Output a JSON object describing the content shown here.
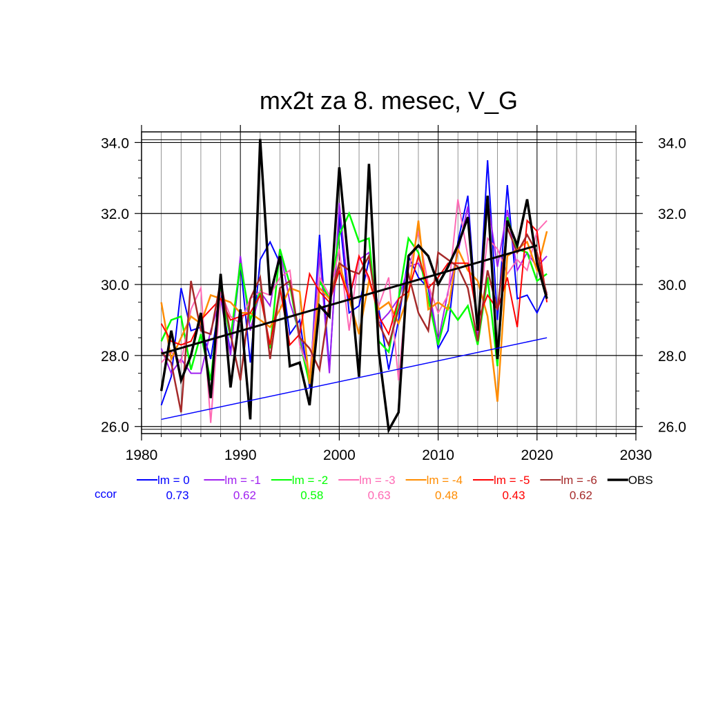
{
  "chart_data": {
    "type": "line",
    "title": "mx2t za 8. mesec, V_G",
    "xlabel": "",
    "ylabel": "",
    "xlim": [
      1980,
      2030
    ],
    "ylim": [
      25.8,
      34.3
    ],
    "x_ticks": [
      1980,
      1990,
      2000,
      2010,
      2020,
      2030
    ],
    "x_tick_labels": [
      "1980",
      "1990",
      "2000",
      "2010",
      "2020",
      "2030"
    ],
    "y_ticks": [
      26,
      28,
      30,
      32,
      34
    ],
    "y_tick_labels": [
      "26.0",
      "28.0",
      "30.0",
      "32.0",
      "34.0"
    ],
    "grid": true,
    "x": [
      1982,
      1983,
      1984,
      1985,
      1986,
      1987,
      1988,
      1989,
      1990,
      1991,
      1992,
      1993,
      1994,
      1995,
      1996,
      1997,
      1998,
      1999,
      2000,
      2001,
      2002,
      2003,
      2004,
      2005,
      2006,
      2007,
      2008,
      2009,
      2010,
      2011,
      2012,
      2013,
      2014,
      2015,
      2016,
      2017,
      2018,
      2019,
      2020,
      2021
    ],
    "series": [
      {
        "name": "lm = 0",
        "color": "#0000ff",
        "width": 2,
        "values": [
          26.6,
          27.4,
          29.9,
          28.7,
          28.8,
          27.9,
          29.7,
          28.1,
          30.6,
          27.8,
          30.7,
          31.2,
          30.6,
          28.6,
          29.0,
          27.1,
          31.4,
          27.6,
          32.0,
          29.2,
          29.4,
          30.7,
          29.3,
          27.6,
          29.0,
          30.8,
          30.2,
          29.9,
          28.2,
          28.7,
          31.2,
          32.5,
          28.6,
          33.5,
          29.0,
          32.8,
          29.6,
          29.7,
          29.2,
          29.8
        ]
      },
      {
        "name": "lm = -1",
        "color": "#a020f0",
        "width": 2,
        "values": [
          28.2,
          27.5,
          27.9,
          27.5,
          27.5,
          28.7,
          29.6,
          28.0,
          30.8,
          28.7,
          29.8,
          29.4,
          31.0,
          29.5,
          28.6,
          27.2,
          30.9,
          27.5,
          32.3,
          29.6,
          30.7,
          30.9,
          28.9,
          29.2,
          29.6,
          30.5,
          30.6,
          30.0,
          28.4,
          29.8,
          30.9,
          32.2,
          28.5,
          32.4,
          30.5,
          32.1,
          30.4,
          30.9,
          30.5,
          30.8
        ]
      },
      {
        "name": "lm = -2",
        "color": "#00ff00",
        "width": 2.5,
        "values": [
          28.4,
          29.0,
          29.1,
          27.6,
          28.6,
          27.3,
          29.9,
          28.5,
          30.6,
          29.0,
          29.8,
          28.2,
          31.0,
          30.0,
          28.4,
          27.2,
          30.1,
          29.6,
          31.4,
          32.0,
          31.2,
          31.3,
          28.4,
          28.1,
          29.6,
          31.3,
          30.9,
          29.6,
          28.3,
          29.4,
          29.0,
          29.4,
          28.3,
          30.2,
          27.7,
          31.9,
          31.0,
          30.9,
          30.1,
          30.3
        ]
      },
      {
        "name": "lm = -3",
        "color": "#ff69b4",
        "width": 2,
        "values": [
          27.8,
          28.1,
          27.8,
          29.3,
          29.9,
          26.1,
          29.8,
          29.1,
          28.9,
          29.6,
          29.8,
          29.7,
          30.2,
          30.4,
          28.3,
          27.5,
          30.2,
          29.7,
          31.0,
          28.7,
          30.8,
          30.1,
          29.4,
          30.2,
          27.3,
          30.4,
          31.5,
          30.0,
          29.2,
          29.7,
          32.4,
          30.8,
          28.9,
          31.3,
          31.0,
          30.3,
          30.7,
          30.4,
          31.5,
          31.8
        ]
      },
      {
        "name": "lm = -4",
        "color": "#ff8c00",
        "width": 2.5,
        "values": [
          29.5,
          27.9,
          28.5,
          29.1,
          28.9,
          29.7,
          29.6,
          29.5,
          29.2,
          29.2,
          29.0,
          28.8,
          29.3,
          29.9,
          29.8,
          27.2,
          29.9,
          29.6,
          30.6,
          29.6,
          28.6,
          30.1,
          29.3,
          29.5,
          28.9,
          29.7,
          31.8,
          29.3,
          29.5,
          29.3,
          31.0,
          30.4,
          30.1,
          29.1,
          26.7,
          30.8,
          31.0,
          31.2,
          30.4,
          31.5
        ]
      },
      {
        "name": "lm = -5",
        "color": "#ff0000",
        "width": 2,
        "values": [
          28.9,
          28.4,
          28.3,
          28.4,
          29.0,
          29.3,
          29.6,
          29.0,
          29.1,
          29.2,
          29.7,
          28.3,
          29.9,
          28.3,
          28.6,
          30.3,
          29.8,
          29.5,
          30.4,
          29.6,
          30.8,
          30.2,
          29.1,
          28.6,
          29.6,
          29.8,
          30.8,
          29.9,
          30.2,
          30.6,
          30.6,
          30.6,
          29.0,
          29.7,
          29.3,
          30.2,
          28.8,
          31.8,
          31.5,
          29.5
        ]
      },
      {
        "name": "lm = -6",
        "color": "#a52a2a",
        "width": 2.5,
        "values": [
          28.1,
          27.8,
          26.4,
          30.1,
          28.7,
          28.6,
          30.1,
          28.6,
          27.3,
          29.6,
          30.2,
          27.9,
          29.9,
          30.1,
          28.5,
          28.2,
          27.6,
          29.5,
          30.6,
          30.4,
          30.3,
          30.8,
          28.9,
          28.3,
          29.3,
          30.3,
          29.2,
          28.7,
          30.9,
          30.7,
          30.5,
          29.9,
          28.4,
          30.4,
          29.3,
          31.6,
          30.9,
          31.4,
          30.9,
          29.7
        ]
      },
      {
        "name": "OBS",
        "color": "#000000",
        "width": 3.5,
        "values": [
          27.0,
          28.7,
          27.3,
          28.0,
          29.2,
          26.8,
          30.3,
          27.1,
          29.3,
          26.2,
          34.1,
          29.7,
          30.8,
          27.7,
          27.8,
          26.6,
          29.4,
          29.1,
          33.3,
          30.4,
          27.4,
          33.4,
          28.1,
          25.9,
          26.4,
          30.8,
          31.1,
          30.8,
          30.0,
          30.5,
          31.1,
          31.9,
          28.7,
          32.5,
          27.9,
          31.8,
          31.1,
          32.4,
          30.6,
          29.6
        ]
      }
    ],
    "trend_lines": [
      {
        "color": "#000000",
        "width": 3,
        "x": [
          1982,
          2020
        ],
        "y": [
          28.05,
          31.1
        ]
      },
      {
        "color": "#0000ff",
        "width": 1.5,
        "x": [
          1982,
          2021
        ],
        "y": [
          26.2,
          28.5
        ]
      }
    ],
    "legend_position": "bottom",
    "legend": {
      "correlation_label": "ccor",
      "correlation_label_color": "#0000ff",
      "entries": [
        {
          "label": "lm = 0",
          "color": "#0000ff",
          "value": "0.73"
        },
        {
          "label": "lm = -1",
          "color": "#a020f0",
          "value": "0.62"
        },
        {
          "label": "lm = -2",
          "color": "#00ff00",
          "value": "0.58"
        },
        {
          "label": "lm = -3",
          "color": "#ff69b4",
          "value": "0.63"
        },
        {
          "label": "lm = -4",
          "color": "#ff8c00",
          "value": "0.48"
        },
        {
          "label": "lm = -5",
          "color": "#ff0000",
          "value": "0.43"
        },
        {
          "label": "lm = -6",
          "color": "#a52a2a",
          "value": "0.62"
        },
        {
          "label": "OBS",
          "color": "#000000",
          "value": ""
        }
      ]
    }
  }
}
